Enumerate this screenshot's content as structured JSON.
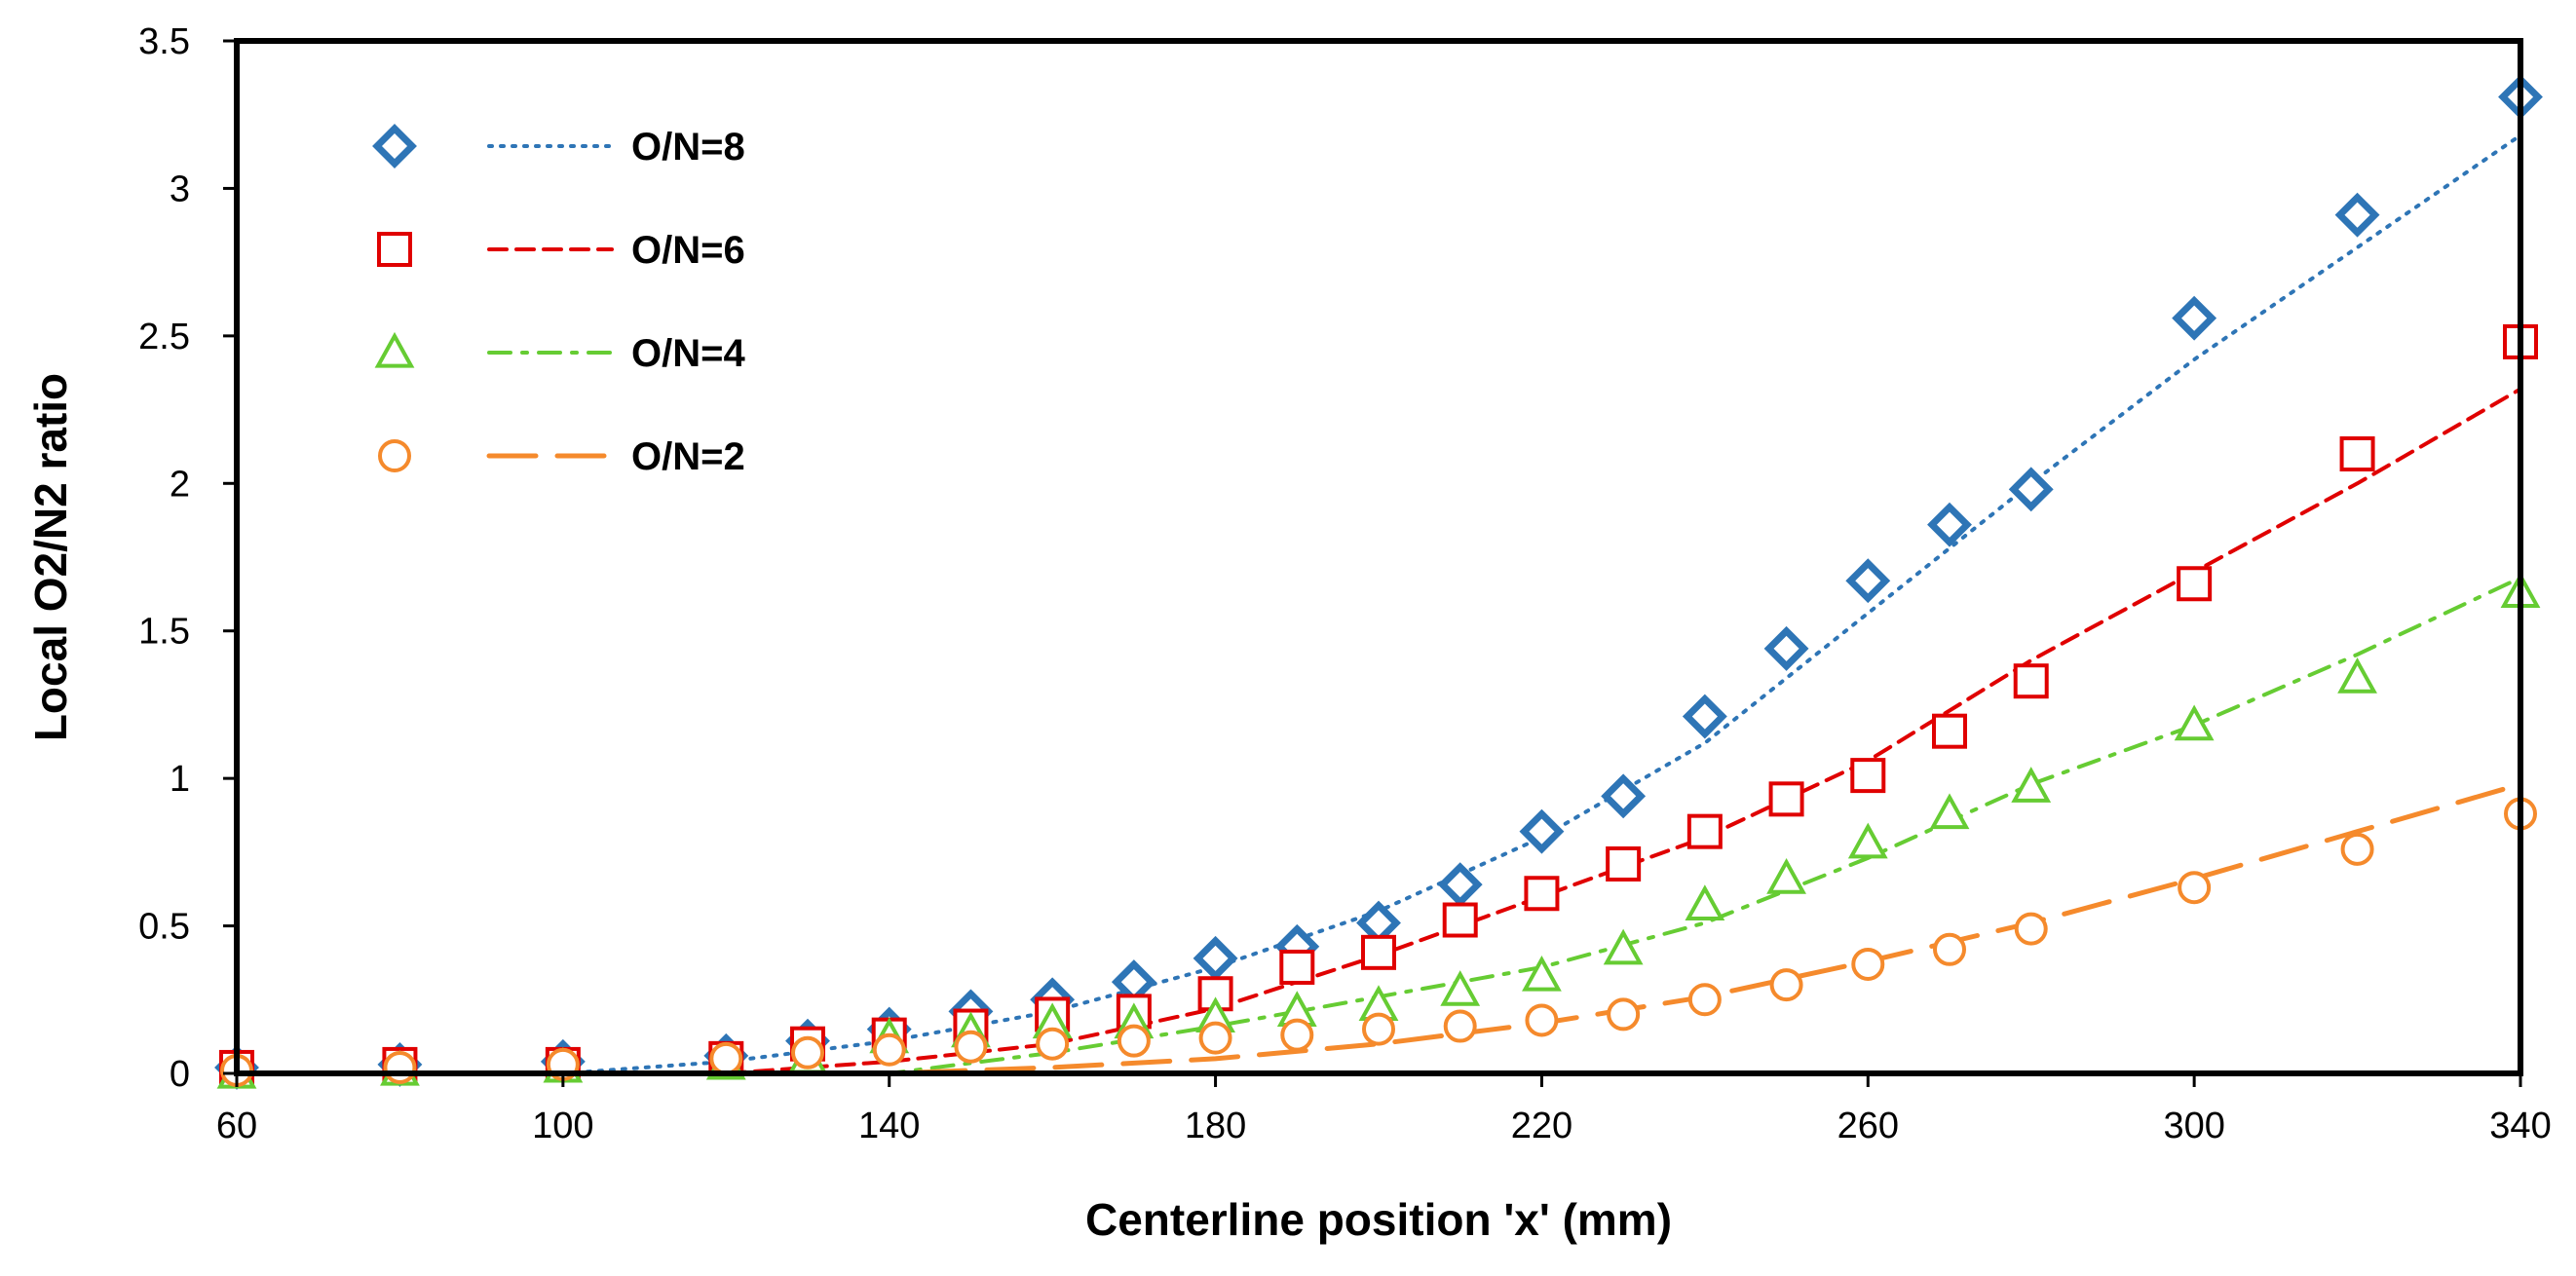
{
  "chart_data": {
    "type": "scatter",
    "title": "",
    "xlabel": "Centerline position 'x' (mm)",
    "ylabel": "Local O2/N2 ratio",
    "xlim": [
      60,
      340
    ],
    "ylim": [
      0,
      3.5
    ],
    "x_ticks": [
      "60",
      "100",
      "140",
      "180",
      "220",
      "260",
      "300",
      "340"
    ],
    "y_ticks": [
      "0",
      "0.5",
      "1",
      "1.5",
      "2",
      "2.5",
      "3",
      "3.5"
    ],
    "grid": false,
    "legend_position": "top-left",
    "x": [
      60,
      80,
      100,
      120,
      130,
      140,
      150,
      160,
      170,
      180,
      190,
      200,
      210,
      220,
      230,
      240,
      250,
      260,
      270,
      280,
      300,
      320,
      340
    ],
    "series": [
      {
        "name": "O/N=8",
        "marker": "diamond",
        "color": "#2E75B6",
        "line_style": "dotted",
        "values": [
          0.02,
          0.03,
          0.04,
          0.06,
          0.11,
          0.15,
          0.21,
          0.25,
          0.31,
          0.39,
          0.43,
          0.51,
          0.64,
          0.82,
          0.94,
          1.21,
          1.44,
          1.67,
          1.86,
          1.98,
          2.56,
          2.91,
          3.31
        ],
        "fit": [
          [
            60,
            0
          ],
          [
            100,
            0
          ],
          [
            120,
            0.04
          ],
          [
            140,
            0.11
          ],
          [
            160,
            0.21
          ],
          [
            180,
            0.36
          ],
          [
            200,
            0.55
          ],
          [
            220,
            0.8
          ],
          [
            240,
            1.12
          ],
          [
            260,
            1.56
          ],
          [
            280,
            2.0
          ],
          [
            300,
            2.42
          ],
          [
            320,
            2.8
          ],
          [
            340,
            3.18
          ]
        ]
      },
      {
        "name": "O/N=6",
        "marker": "square",
        "color": "#E00000",
        "line_style": "dashed",
        "values": [
          0.02,
          0.03,
          0.03,
          0.05,
          0.1,
          0.13,
          0.16,
          0.2,
          0.21,
          0.27,
          0.36,
          0.41,
          0.52,
          0.61,
          0.71,
          0.82,
          0.93,
          1.01,
          1.16,
          1.33,
          1.66,
          2.1,
          2.48
        ],
        "fit": [
          [
            60,
            0
          ],
          [
            120,
            0
          ],
          [
            140,
            0.04
          ],
          [
            160,
            0.1
          ],
          [
            180,
            0.22
          ],
          [
            200,
            0.4
          ],
          [
            220,
            0.6
          ],
          [
            240,
            0.8
          ],
          [
            260,
            1.06
          ],
          [
            280,
            1.4
          ],
          [
            300,
            1.7
          ],
          [
            320,
            2.0
          ],
          [
            340,
            2.32
          ]
        ]
      },
      {
        "name": "O/N=4",
        "marker": "triangle",
        "color": "#66CC33",
        "line_style": "dash-dot",
        "values": [
          0.0,
          0.01,
          0.02,
          0.03,
          0.05,
          0.12,
          0.14,
          0.17,
          0.17,
          0.19,
          0.21,
          0.23,
          0.28,
          0.33,
          0.42,
          0.57,
          0.66,
          0.78,
          0.88,
          0.97,
          1.18,
          1.34,
          1.63
        ],
        "fit": [
          [
            60,
            0
          ],
          [
            140,
            0
          ],
          [
            160,
            0.07
          ],
          [
            180,
            0.16
          ],
          [
            200,
            0.26
          ],
          [
            220,
            0.36
          ],
          [
            240,
            0.51
          ],
          [
            260,
            0.73
          ],
          [
            280,
            0.98
          ],
          [
            300,
            1.18
          ],
          [
            320,
            1.42
          ],
          [
            340,
            1.68
          ]
        ]
      },
      {
        "name": "O/N=2",
        "marker": "circle",
        "color": "#F58A2C",
        "line_style": "long-dash",
        "values": [
          0.01,
          0.02,
          0.03,
          0.05,
          0.07,
          0.08,
          0.09,
          0.1,
          0.11,
          0.12,
          0.13,
          0.15,
          0.16,
          0.18,
          0.2,
          0.25,
          0.3,
          0.37,
          0.42,
          0.49,
          0.63,
          0.76,
          0.88
        ],
        "fit": [
          [
            60,
            0
          ],
          [
            140,
            0
          ],
          [
            160,
            0.02
          ],
          [
            180,
            0.05
          ],
          [
            200,
            0.1
          ],
          [
            220,
            0.17
          ],
          [
            240,
            0.26
          ],
          [
            260,
            0.38
          ],
          [
            280,
            0.51
          ],
          [
            300,
            0.66
          ],
          [
            320,
            0.82
          ],
          [
            340,
            0.98
          ]
        ]
      }
    ]
  }
}
